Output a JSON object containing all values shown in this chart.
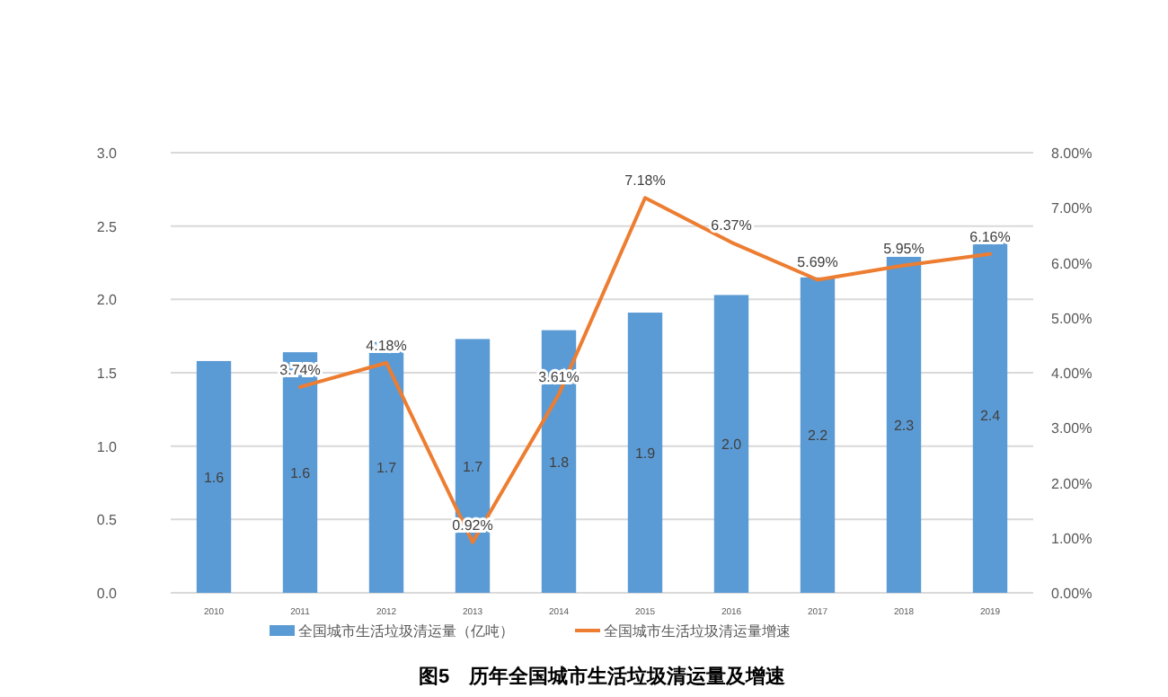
{
  "chart_data": {
    "type": "bar",
    "title": "图5　历年全国城市生活垃圾清运量及增速",
    "categories": [
      "2010",
      "2011",
      "2012",
      "2013",
      "2014",
      "2015",
      "2016",
      "2017",
      "2018",
      "2019"
    ],
    "series": [
      {
        "name": "全国城市生活垃圾清运量（亿吨）",
        "color": "#5b9bd5",
        "values": [
          1.58,
          1.64,
          1.71,
          1.73,
          1.79,
          1.91,
          2.03,
          2.15,
          2.29,
          2.42
        ],
        "value_labels": [
          "1.6",
          "1.6",
          "1.7",
          "1.7",
          "1.8",
          "1.9",
          "2.0",
          "2.2",
          "2.3",
          "2.4"
        ]
      },
      {
        "name": "全国城市生活垃圾清运量增速",
        "type": "line",
        "axis": "y2",
        "color": "#ed7d31",
        "values": [
          null,
          3.74,
          4.18,
          0.92,
          3.61,
          7.18,
          6.37,
          5.69,
          5.95,
          6.16
        ],
        "value_labels": [
          null,
          "3.74%",
          "4.18%",
          "0.92%",
          "3.61%",
          "7.18%",
          "6.37%",
          "5.69%",
          "5.95%",
          "6.16%"
        ]
      }
    ],
    "ylim": [
      0,
      3
    ],
    "yticks": [
      {
        "value": 0,
        "label": "0.0"
      },
      {
        "value": 0.5,
        "label": "0.5"
      },
      {
        "value": 1,
        "label": "1.0"
      },
      {
        "value": 1.5,
        "label": "1.5"
      },
      {
        "value": 2,
        "label": "2.0"
      },
      {
        "value": 2.5,
        "label": "2.5"
      },
      {
        "value": 3,
        "label": "3.0"
      }
    ],
    "y2lim": [
      0,
      8
    ],
    "y2ticks": [
      {
        "value": 0,
        "label": "0.00%"
      },
      {
        "value": 1,
        "label": "1.00%"
      },
      {
        "value": 2,
        "label": "2.00%"
      },
      {
        "value": 3,
        "label": "3.00%"
      },
      {
        "value": 4,
        "label": "4.00%"
      },
      {
        "value": 5,
        "label": "5.00%"
      },
      {
        "value": 6,
        "label": "6.00%"
      },
      {
        "value": 7,
        "label": "7.00%"
      },
      {
        "value": 8,
        "label": "8.00%"
      }
    ],
    "grid": "y",
    "legend": "bottom",
    "marker": "none",
    "line_style": "solid"
  }
}
